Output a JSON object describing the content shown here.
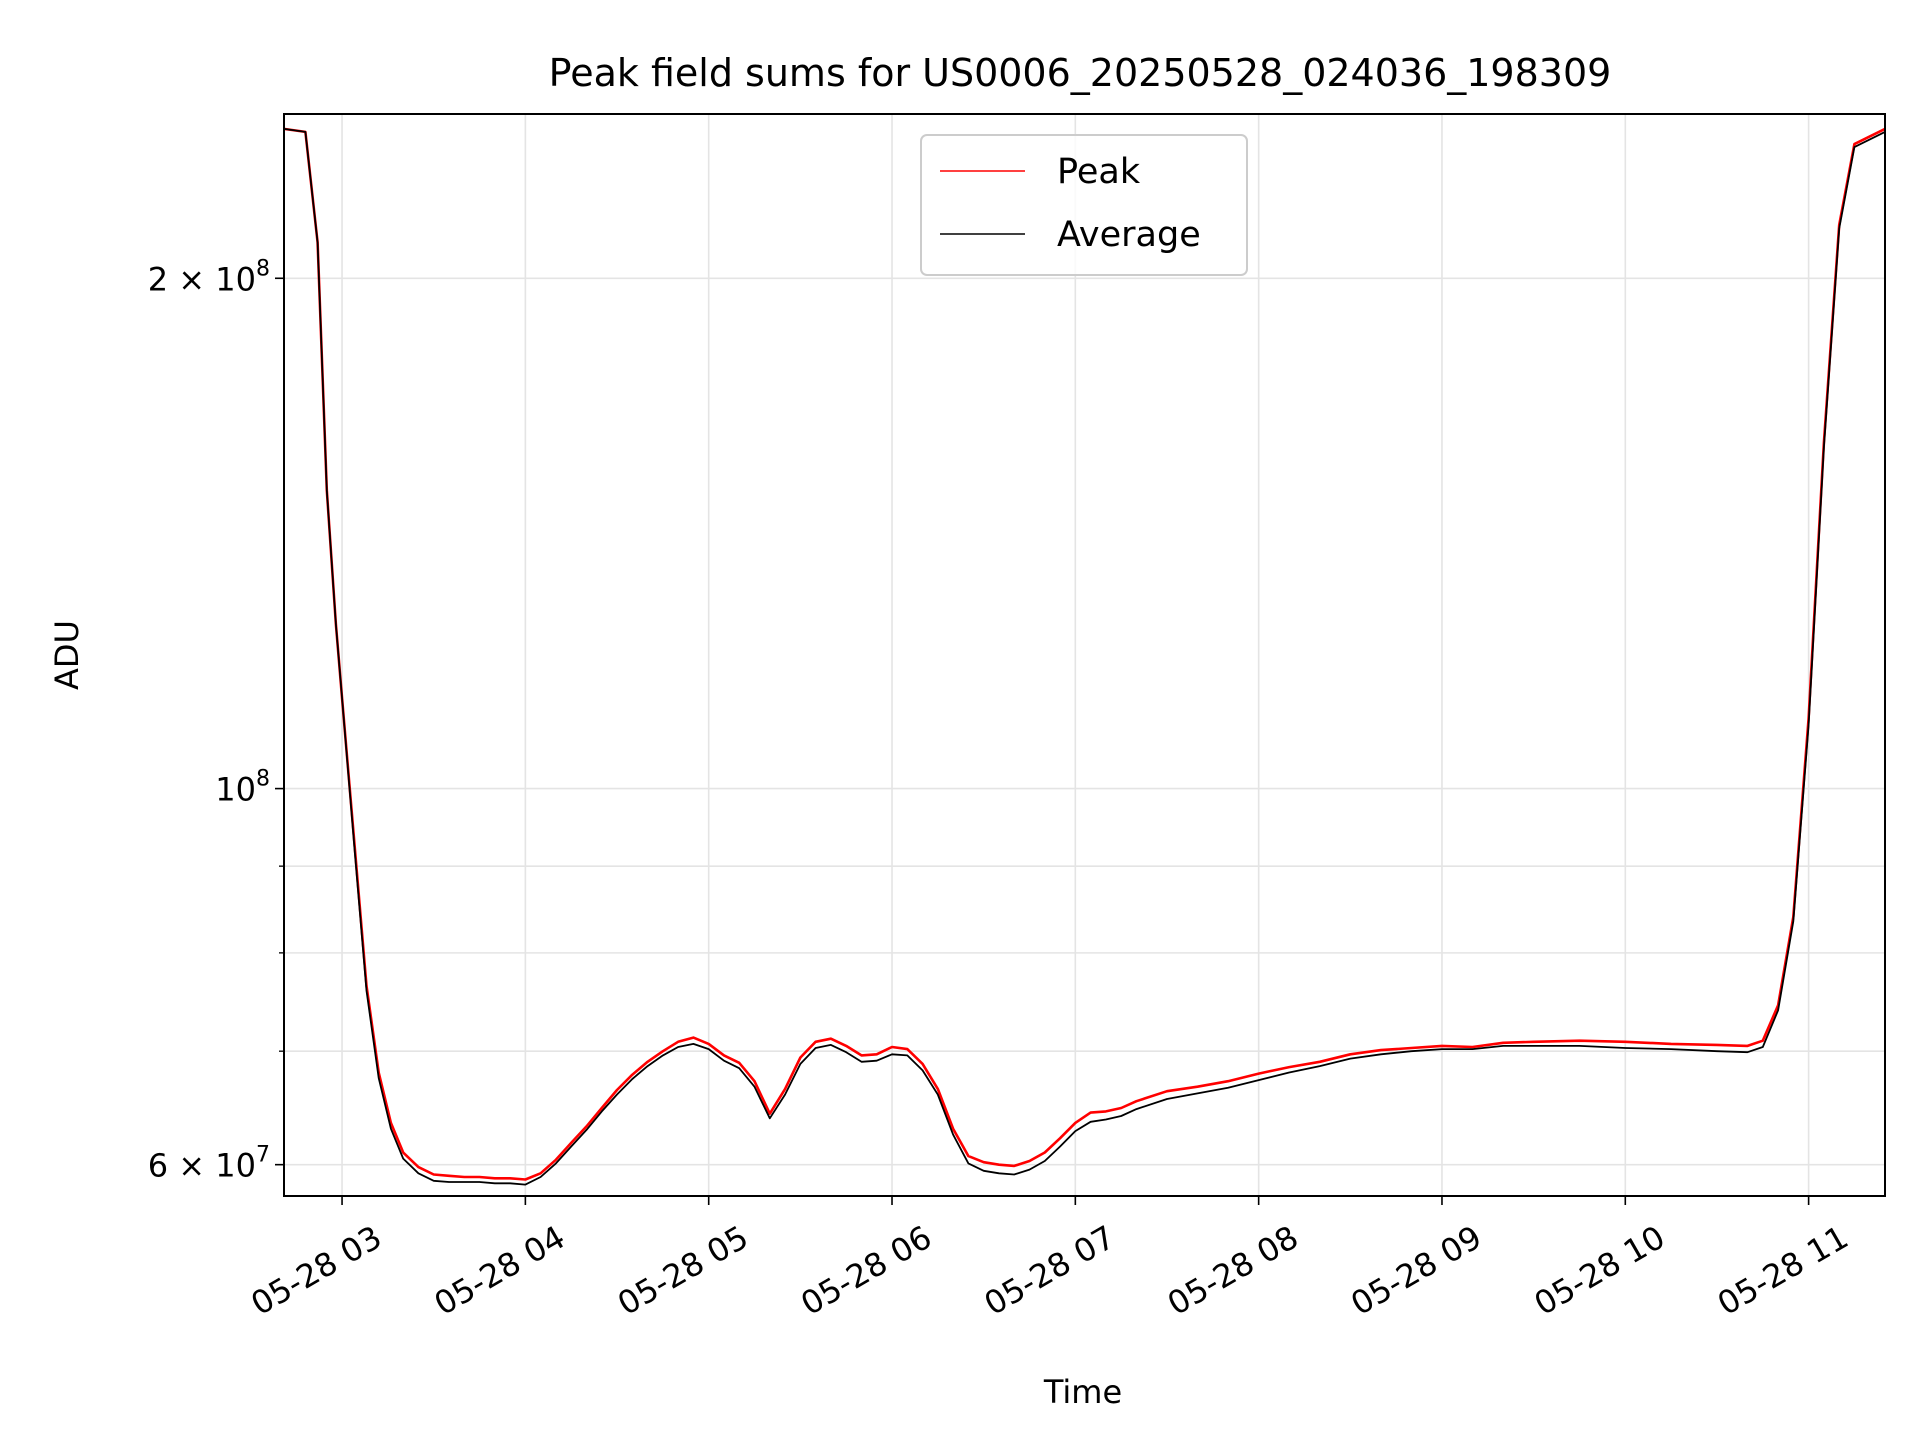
{
  "chart_data": {
    "type": "line",
    "title": "Peak field sums for US0006_20250528_024036_198309",
    "xlabel": "Time",
    "ylabel": "ADU",
    "y_scale": "log",
    "ylim": [
      57500000,
      250000000
    ],
    "xlim": [
      "2025-05-28 02:41",
      "2025-05-28 11:25"
    ],
    "grid": true,
    "legend_position": "upper center",
    "x_ticks": [
      "2025-05-28 03:00",
      "2025-05-28 04:00",
      "2025-05-28 05:00",
      "2025-05-28 06:00",
      "2025-05-28 07:00",
      "2025-05-28 08:00",
      "2025-05-28 09:00",
      "2025-05-28 10:00",
      "2025-05-28 11:00"
    ],
    "x_tick_labels": [
      "05-28 03",
      "05-28 04",
      "05-28 05",
      "05-28 06",
      "05-28 07",
      "05-28 08",
      "05-28 09",
      "05-28 10",
      "05-28 11"
    ],
    "y_ticks": [
      {
        "value": 60000000,
        "base": "6 × 10",
        "exp": "7"
      },
      {
        "value": 100000000,
        "base": "10",
        "exp": "8"
      },
      {
        "value": 200000000,
        "base": "2 × 10",
        "exp": "8"
      }
    ],
    "y_minor_ticks": [
      70000000,
      80000000,
      90000000
    ],
    "series": [
      {
        "name": "Peak",
        "color": "#ff0000",
        "x": [
          "02:41",
          "02:48",
          "02:52",
          "02:55",
          "02:58",
          "03:00",
          "03:04",
          "03:08",
          "03:12",
          "03:16",
          "03:20",
          "03:25",
          "03:30",
          "03:35",
          "03:40",
          "03:45",
          "03:50",
          "03:55",
          "04:00",
          "04:05",
          "04:10",
          "04:15",
          "04:20",
          "04:25",
          "04:30",
          "04:35",
          "04:40",
          "04:45",
          "04:50",
          "04:55",
          "05:00",
          "05:05",
          "05:10",
          "05:15",
          "05:20",
          "05:25",
          "05:30",
          "05:35",
          "05:40",
          "05:45",
          "05:50",
          "05:55",
          "06:00",
          "06:05",
          "06:10",
          "06:15",
          "06:20",
          "06:25",
          "06:30",
          "06:35",
          "06:40",
          "06:45",
          "06:50",
          "06:55",
          "07:00",
          "07:05",
          "07:10",
          "07:15",
          "07:20",
          "07:30",
          "07:40",
          "07:50",
          "08:00",
          "08:10",
          "08:20",
          "08:30",
          "08:40",
          "08:50",
          "09:00",
          "09:10",
          "09:20",
          "09:30",
          "09:45",
          "10:00",
          "10:15",
          "10:30",
          "10:40",
          "10:45",
          "10:50",
          "10:55",
          "11:00",
          "11:05",
          "11:10",
          "11:15",
          "11:25"
        ],
        "values": [
          245000000,
          244000000,
          210000000,
          150000000,
          125000000,
          113000000,
          93000000,
          76500000,
          68000000,
          63500000,
          61000000,
          59800000,
          59200000,
          59100000,
          59000000,
          59000000,
          58900000,
          58900000,
          58800000,
          59300000,
          60400000,
          61800000,
          63200000,
          64800000,
          66400000,
          67800000,
          69000000,
          70000000,
          70900000,
          71300000,
          70700000,
          69600000,
          68900000,
          67200000,
          64300000,
          66500000,
          69400000,
          70900000,
          71200000,
          70500000,
          69600000,
          69700000,
          70400000,
          70200000,
          68800000,
          66500000,
          63000000,
          60700000,
          60200000,
          60000000,
          59900000,
          60300000,
          61000000,
          62200000,
          63500000,
          64400000,
          64500000,
          64800000,
          65400000,
          66300000,
          66700000,
          67200000,
          67900000,
          68500000,
          69000000,
          69700000,
          70100000,
          70300000,
          70500000,
          70400000,
          70800000,
          70900000,
          71000000,
          70900000,
          70700000,
          70600000,
          70500000,
          71000000,
          74500000,
          84000000,
          110000000,
          160000000,
          215000000,
          240000000,
          245000000
        ]
      },
      {
        "name": "Average",
        "color": "#000000",
        "x": [
          "02:41",
          "02:48",
          "02:52",
          "02:55",
          "02:58",
          "03:00",
          "03:04",
          "03:08",
          "03:12",
          "03:16",
          "03:20",
          "03:25",
          "03:30",
          "03:35",
          "03:40",
          "03:45",
          "03:50",
          "03:55",
          "04:00",
          "04:05",
          "04:10",
          "04:15",
          "04:20",
          "04:25",
          "04:30",
          "04:35",
          "04:40",
          "04:45",
          "04:50",
          "04:55",
          "05:00",
          "05:05",
          "05:10",
          "05:15",
          "05:20",
          "05:25",
          "05:30",
          "05:35",
          "05:40",
          "05:45",
          "05:50",
          "05:55",
          "06:00",
          "06:05",
          "06:10",
          "06:15",
          "06:20",
          "06:25",
          "06:30",
          "06:35",
          "06:40",
          "06:45",
          "06:50",
          "06:55",
          "07:00",
          "07:05",
          "07:10",
          "07:15",
          "07:20",
          "07:30",
          "07:40",
          "07:50",
          "08:00",
          "08:10",
          "08:20",
          "08:30",
          "08:40",
          "08:50",
          "09:00",
          "09:10",
          "09:20",
          "09:30",
          "09:45",
          "10:00",
          "10:15",
          "10:30",
          "10:40",
          "10:45",
          "10:50",
          "10:55",
          "11:00",
          "11:05",
          "11:10",
          "11:15",
          "11:25"
        ],
        "values": [
          245000000,
          244000000,
          210000000,
          150000000,
          125000000,
          113000000,
          92500000,
          76000000,
          67500000,
          63000000,
          60500000,
          59300000,
          58700000,
          58600000,
          58600000,
          58600000,
          58500000,
          58500000,
          58400000,
          59000000,
          60100000,
          61500000,
          62900000,
          64500000,
          66000000,
          67400000,
          68600000,
          69600000,
          70400000,
          70700000,
          70200000,
          69100000,
          68400000,
          66700000,
          63900000,
          66000000,
          68800000,
          70300000,
          70600000,
          69900000,
          69000000,
          69100000,
          69700000,
          69600000,
          68200000,
          66000000,
          62500000,
          60100000,
          59500000,
          59300000,
          59200000,
          59600000,
          60300000,
          61500000,
          62800000,
          63600000,
          63800000,
          64100000,
          64700000,
          65600000,
          66100000,
          66600000,
          67300000,
          68000000,
          68600000,
          69300000,
          69700000,
          70000000,
          70200000,
          70200000,
          70500000,
          70500000,
          70500000,
          70300000,
          70200000,
          70000000,
          69900000,
          70400000,
          74000000,
          83500000,
          109000000,
          159000000,
          214000000,
          239000000,
          244000000
        ]
      }
    ]
  }
}
